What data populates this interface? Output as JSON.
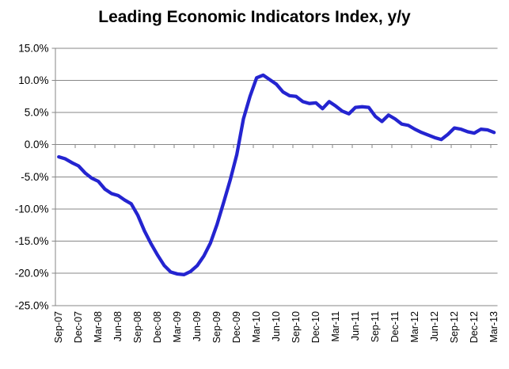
{
  "chart_data": {
    "type": "line",
    "title": "Leading Economic Indicators Index, y/y",
    "x": [
      "Sep-07",
      "Oct-07",
      "Nov-07",
      "Dec-07",
      "Jan-08",
      "Feb-08",
      "Mar-08",
      "Apr-08",
      "May-08",
      "Jun-08",
      "Jul-08",
      "Aug-08",
      "Sep-08",
      "Oct-08",
      "Nov-08",
      "Dec-08",
      "Jan-09",
      "Feb-09",
      "Mar-09",
      "Apr-09",
      "May-09",
      "Jun-09",
      "Jul-09",
      "Aug-09",
      "Sep-09",
      "Oct-09",
      "Nov-09",
      "Dec-09",
      "Jan-10",
      "Feb-10",
      "Mar-10",
      "Apr-10",
      "May-10",
      "Jun-10",
      "Jul-10",
      "Aug-10",
      "Sep-10",
      "Oct-10",
      "Nov-10",
      "Dec-10",
      "Jan-11",
      "Feb-11",
      "Mar-11",
      "Apr-11",
      "May-11",
      "Jun-11",
      "Jul-11",
      "Aug-11",
      "Sep-11",
      "Oct-11",
      "Nov-11",
      "Dec-11",
      "Jan-12",
      "Feb-12",
      "Mar-12",
      "Apr-12",
      "May-12",
      "Jun-12",
      "Jul-12",
      "Aug-12",
      "Sep-12",
      "Oct-12",
      "Nov-12",
      "Dec-12",
      "Jan-13",
      "Feb-13",
      "Mar-13"
    ],
    "values": [
      -1.9,
      -2.2,
      -2.8,
      -3.3,
      -4.4,
      -5.2,
      -5.7,
      -6.9,
      -7.6,
      -7.9,
      -8.6,
      -9.2,
      -11.0,
      -13.4,
      -15.4,
      -17.2,
      -18.8,
      -19.8,
      -20.1,
      -20.2,
      -19.7,
      -18.8,
      -17.3,
      -15.3,
      -12.4,
      -9.0,
      -5.5,
      -1.5,
      4.0,
      7.5,
      10.4,
      10.8,
      10.1,
      9.4,
      8.2,
      7.6,
      7.5,
      6.7,
      6.4,
      6.5,
      5.6,
      6.7,
      6.0,
      5.2,
      4.8,
      5.8,
      5.9,
      5.8,
      4.4,
      3.6,
      4.6,
      4.0,
      3.2,
      3.0,
      2.4,
      1.9,
      1.5,
      1.1,
      0.8,
      1.6,
      2.6,
      2.4,
      2.0,
      1.8,
      2.4,
      2.3,
      1.9
    ],
    "x_tick_labels": [
      "Sep-07",
      "Dec-07",
      "Mar-08",
      "Jun-08",
      "Sep-08",
      "Dec-08",
      "Mar-09",
      "Jun-09",
      "Sep-09",
      "Dec-09",
      "Mar-10",
      "Jun-10",
      "Sep-10",
      "Dec-10",
      "Mar-11",
      "Jun-11",
      "Sep-11",
      "Dec-11",
      "Mar-12",
      "Jun-12",
      "Sep-12",
      "Dec-12",
      "Mar-13"
    ],
    "x_tick_every": 3,
    "ylim": [
      -25,
      15
    ],
    "ytick_step": 5,
    "ytick_labels": [
      "15.0%",
      "10.0%",
      "5.0%",
      "0.0%",
      "-5.0%",
      "-10.0%",
      "-15.0%",
      "-20.0%",
      "-25.0%"
    ],
    "ytick_values": [
      15,
      10,
      5,
      0,
      -5,
      -10,
      -15,
      -20,
      -25
    ],
    "xlabel": "",
    "ylabel": "",
    "legend": "none",
    "grid": "horizontal",
    "axis_crosses_at": 0,
    "line_color": "#2424D0",
    "grid_color": "#878787",
    "axis_color": "#878787",
    "text_color": "#000000",
    "background_color": "#FFFFFF"
  }
}
